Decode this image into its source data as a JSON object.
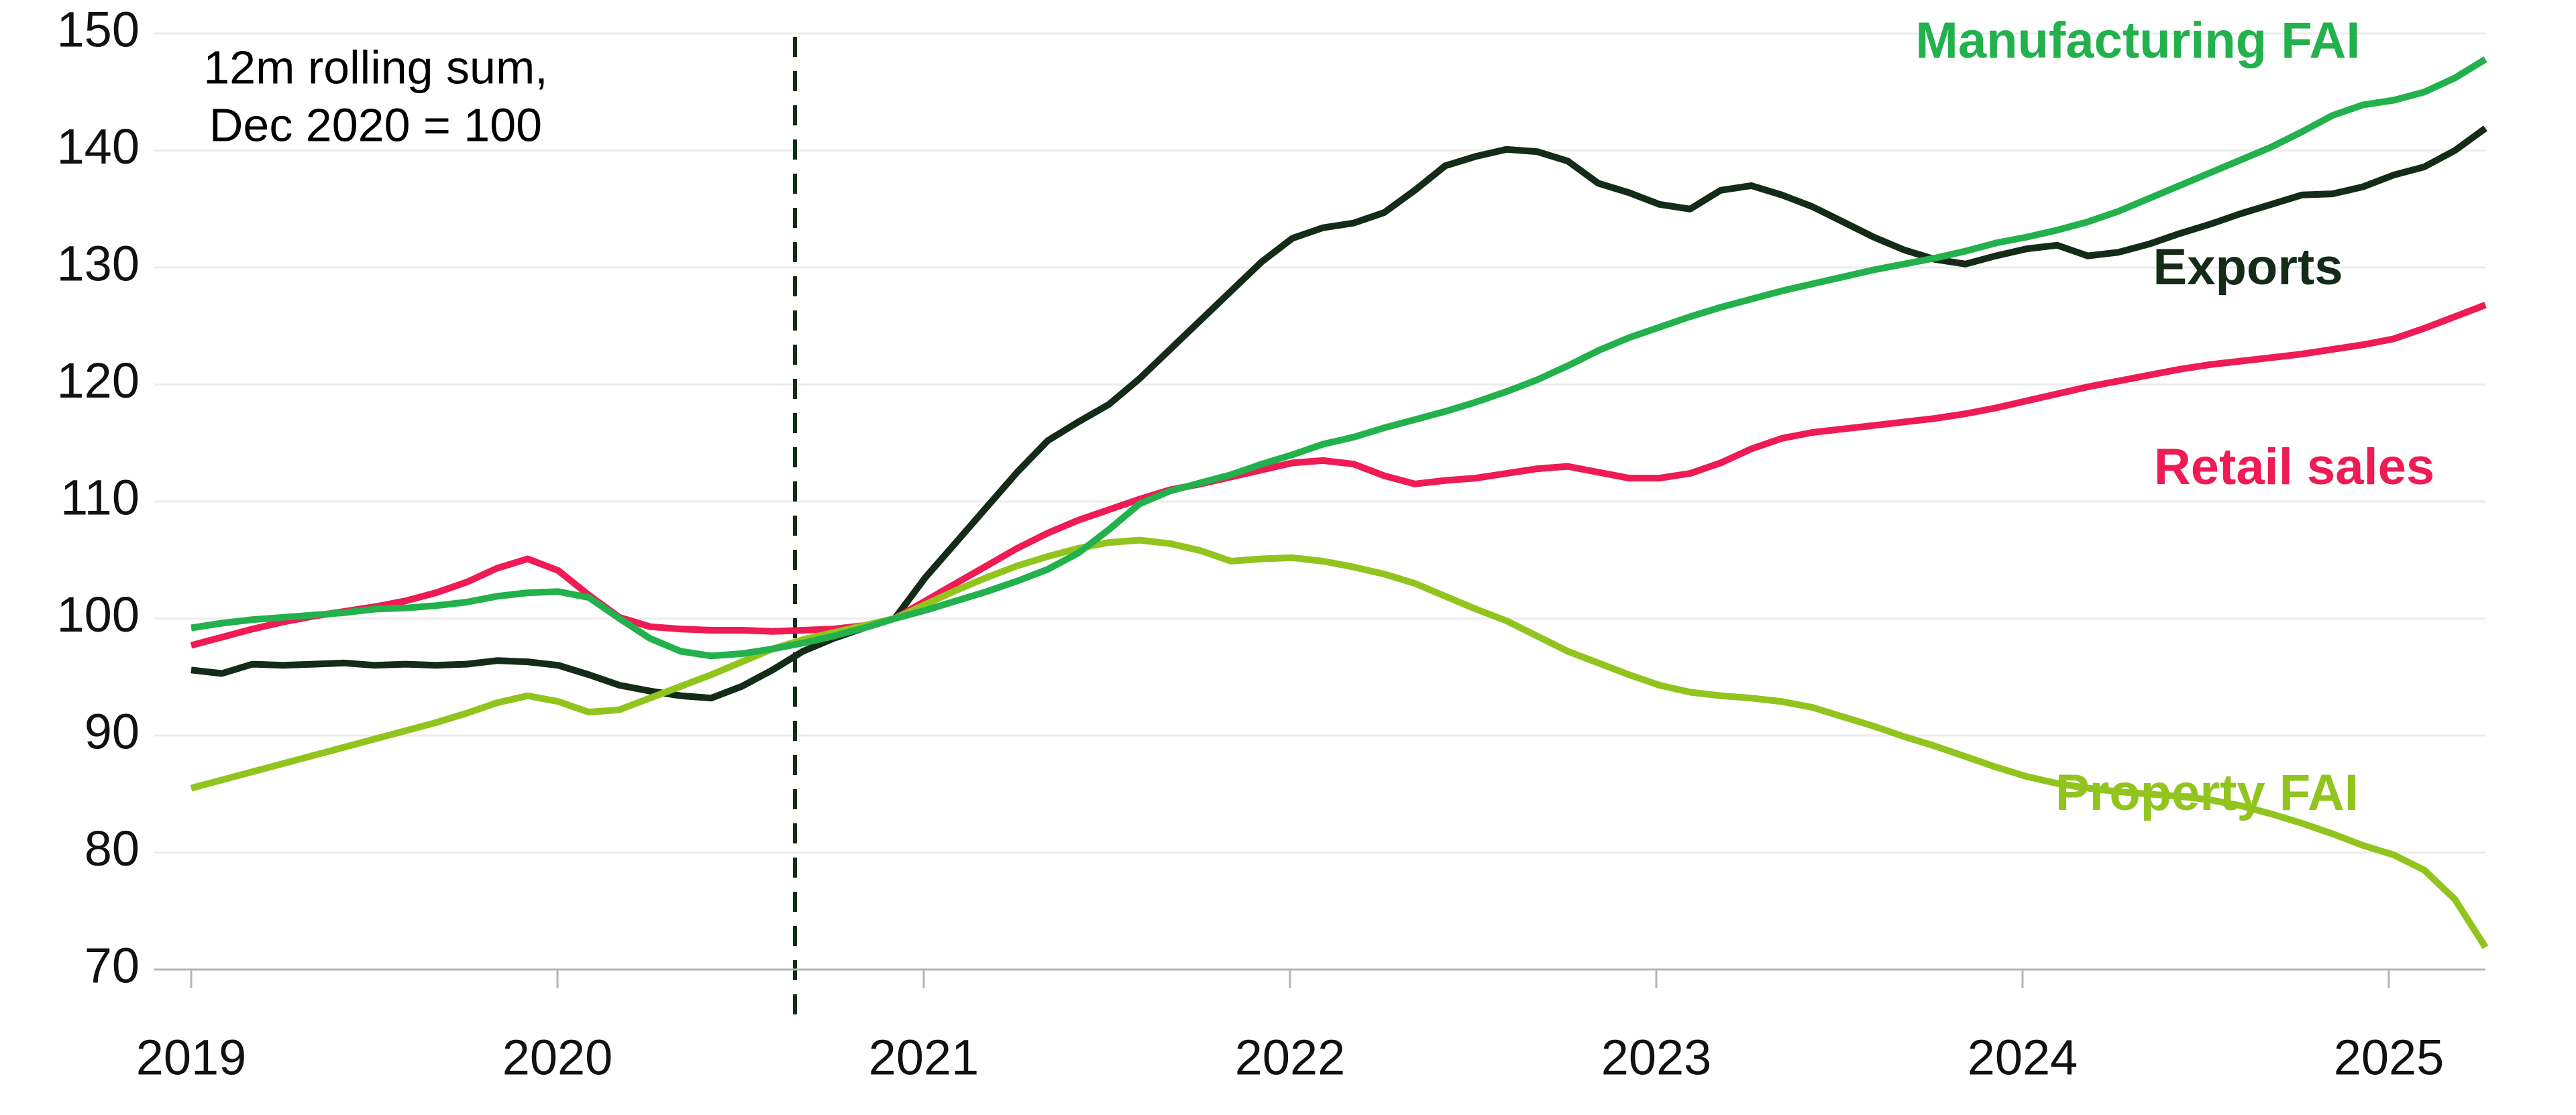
{
  "chart_data": {
    "type": "line",
    "annotation": {
      "line1": "12m rolling sum,",
      "line2": "Dec 2020 = 100"
    },
    "frequency": "monthly",
    "x_start": "2019-01",
    "x_end": "2025-04",
    "x_tick_labels": [
      "2019",
      "2020",
      "2021",
      "2022",
      "2023",
      "2024",
      "2025"
    ],
    "y_tick_labels": [
      "70",
      "80",
      "90",
      "100",
      "110",
      "120",
      "130",
      "140",
      "150"
    ],
    "ylim": [
      70,
      150
    ],
    "grid": "horizontal-only",
    "legend_position": "inline-right",
    "colors": {
      "grid": "#ececec",
      "axis": "#b5b5b5",
      "tick": "#b5b5b5",
      "text": "#111111",
      "event_line": "#142d18"
    },
    "event_line": {
      "at": "2020-08",
      "style": "dashed"
    },
    "series": [
      {
        "name": "Manufacturing FAI",
        "color": "#22b14c",
        "values": [
          99.2,
          99.6,
          99.9,
          100.1,
          100.3,
          100.5,
          100.8,
          100.9,
          101.1,
          101.4,
          101.9,
          102.2,
          102.3,
          101.8,
          100.0,
          98.3,
          97.2,
          96.8,
          97.0,
          97.4,
          97.9,
          98.5,
          99.2,
          100.0,
          100.7,
          101.5,
          102.3,
          103.2,
          104.2,
          105.6,
          107.6,
          109.8,
          110.9,
          111.6,
          112.3,
          113.2,
          114.0,
          114.9,
          115.5,
          116.3,
          117.0,
          117.7,
          118.5,
          119.4,
          120.4,
          121.6,
          122.9,
          124.0,
          124.9,
          125.8,
          126.6,
          127.3,
          128.0,
          128.6,
          129.2,
          129.8,
          130.3,
          130.8,
          131.4,
          132.1,
          132.6,
          133.2,
          133.9,
          134.8,
          135.9,
          137.0,
          138.1,
          139.2,
          140.3,
          141.6,
          143.0,
          143.9,
          144.3,
          145.0,
          146.2,
          147.8
        ]
      },
      {
        "name": "Exports",
        "color": "#132b17",
        "values": [
          95.6,
          95.3,
          96.1,
          96.0,
          96.1,
          96.2,
          96.0,
          96.1,
          96.0,
          96.1,
          96.4,
          96.3,
          96.0,
          95.2,
          94.3,
          93.8,
          93.4,
          93.2,
          94.2,
          95.6,
          97.2,
          98.3,
          99.2,
          100.0,
          103.5,
          106.5,
          109.5,
          112.5,
          115.2,
          116.8,
          118.3,
          120.5,
          123.0,
          125.5,
          128.0,
          130.5,
          132.5,
          133.4,
          133.8,
          134.7,
          136.6,
          138.7,
          139.5,
          140.1,
          139.9,
          139.1,
          137.2,
          136.4,
          135.4,
          135.0,
          136.6,
          137.0,
          136.2,
          135.2,
          133.9,
          132.6,
          131.5,
          130.7,
          130.3,
          131.0,
          131.6,
          131.9,
          131.0,
          131.3,
          132.0,
          132.9,
          133.7,
          134.6,
          135.4,
          136.2,
          136.3,
          136.9,
          137.9,
          138.6,
          140.0,
          141.9
        ]
      },
      {
        "name": "Retail sales",
        "color": "#ee1b55",
        "values": [
          97.7,
          98.4,
          99.1,
          99.7,
          100.2,
          100.6,
          101.0,
          101.5,
          102.2,
          103.1,
          104.3,
          105.1,
          104.1,
          102.0,
          100.1,
          99.3,
          99.1,
          99.0,
          99.0,
          98.9,
          99.0,
          99.1,
          99.4,
          100.0,
          101.5,
          103.0,
          104.5,
          106.0,
          107.3,
          108.4,
          109.3,
          110.2,
          111.0,
          111.5,
          112.1,
          112.7,
          113.3,
          113.5,
          113.2,
          112.2,
          111.5,
          111.8,
          112.0,
          112.4,
          112.8,
          113.0,
          112.5,
          112.0,
          112.0,
          112.4,
          113.3,
          114.5,
          115.4,
          115.9,
          116.2,
          116.5,
          116.8,
          117.1,
          117.5,
          118.0,
          118.6,
          119.2,
          119.8,
          120.3,
          120.8,
          121.3,
          121.7,
          122.0,
          122.3,
          122.6,
          123.0,
          123.4,
          123.9,
          124.8,
          125.8,
          126.8
        ]
      },
      {
        "name": "Property FAI",
        "color": "#92c41e",
        "values": [
          85.5,
          86.2,
          86.9,
          87.6,
          88.3,
          89.0,
          89.7,
          90.4,
          91.1,
          91.9,
          92.8,
          93.4,
          92.9,
          92.0,
          92.2,
          93.2,
          94.2,
          95.2,
          96.3,
          97.4,
          98.2,
          98.8,
          99.4,
          100.0,
          101.2,
          102.4,
          103.5,
          104.5,
          105.3,
          106.0,
          106.5,
          106.7,
          106.4,
          105.8,
          104.9,
          105.1,
          105.2,
          104.9,
          104.4,
          103.8,
          103.0,
          101.9,
          100.8,
          99.8,
          98.5,
          97.2,
          96.2,
          95.2,
          94.3,
          93.7,
          93.4,
          93.2,
          92.9,
          92.4,
          91.6,
          90.8,
          89.9,
          89.1,
          88.2,
          87.3,
          86.5,
          85.9,
          85.5,
          85.2,
          85.0,
          84.8,
          84.5,
          84.0,
          83.3,
          82.5,
          81.6,
          80.6,
          79.8,
          78.5,
          76.0,
          71.9
        ]
      }
    ]
  }
}
